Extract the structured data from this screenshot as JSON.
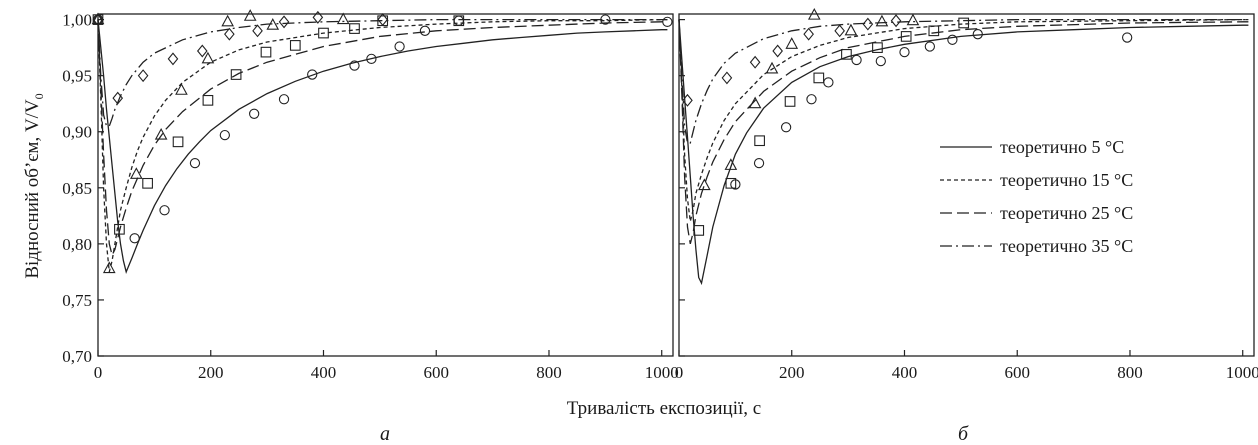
{
  "chart_data": {
    "type": "line",
    "ylabel": "Відносний об’єм, V/V",
    "ylabel_subscript": "0",
    "xlabel": "Тривалість експозиції, с",
    "legend_placement": "center-right of panel б",
    "grid": false,
    "legend": [
      {
        "label": "теоретично 5 °C",
        "dash": "solid"
      },
      {
        "label": "теоретично 15 °C",
        "dash": "short-dash"
      },
      {
        "label": "теоретично 25 °C",
        "dash": "long-dash"
      },
      {
        "label": "теоретично 35 °C",
        "dash": "dash-dot"
      }
    ],
    "panels": [
      {
        "letter": "а",
        "xlim": [
          0,
          1020
        ],
        "ylim": [
          0.7,
          1.005
        ],
        "xticks": [
          0,
          200,
          400,
          600,
          800,
          1000
        ],
        "xtick_labels": [
          "0",
          "200",
          "400",
          "600",
          "800",
          "1000"
        ],
        "yticks": [
          0.7,
          0.75,
          0.8,
          0.85,
          0.9,
          0.95,
          1.0
        ],
        "ytick_labels": [
          "0,70",
          "0,75",
          "0,80",
          "0,85",
          "0,90",
          "0,95",
          "1,00"
        ],
        "series": [
          {
            "dash": "solid",
            "x": [
              0,
              5,
              10,
              15,
              20,
              25,
              30,
              35,
              40,
              45,
              50,
              60,
              70,
              80,
              90,
              100,
              120,
              140,
              160,
              180,
              200,
              250,
              300,
              350,
              400,
              450,
              500,
              550,
              600,
              650,
              700,
              750,
              800,
              850,
              900,
              950,
              1000,
              1010
            ],
            "y": [
              1.0,
              0.975,
              0.95,
              0.92,
              0.895,
              0.87,
              0.845,
              0.82,
              0.8,
              0.785,
              0.775,
              0.787,
              0.8,
              0.812,
              0.823,
              0.834,
              0.852,
              0.867,
              0.88,
              0.891,
              0.901,
              0.92,
              0.934,
              0.945,
              0.954,
              0.961,
              0.967,
              0.972,
              0.976,
              0.979,
              0.982,
              0.984,
              0.986,
              0.988,
              0.989,
              0.99,
              0.991,
              0.991
            ]
          },
          {
            "dash": "short-dash",
            "x": [
              0,
              5,
              10,
              15,
              20,
              25,
              30,
              35,
              40,
              50,
              60,
              70,
              80,
              100,
              120,
              150,
              200,
              250,
              300,
              400,
              500,
              600,
              700,
              800,
              900,
              1000,
              1010
            ],
            "y": [
              1.0,
              0.93,
              0.85,
              0.8,
              0.775,
              0.785,
              0.8,
              0.815,
              0.83,
              0.85,
              0.868,
              0.883,
              0.895,
              0.914,
              0.928,
              0.944,
              0.962,
              0.973,
              0.98,
              0.988,
              0.993,
              0.996,
              0.998,
              0.999,
              0.999,
              1.0,
              1.0
            ]
          },
          {
            "dash": "long-dash",
            "x": [
              0,
              5,
              10,
              15,
              20,
              25,
              30,
              35,
              40,
              50,
              60,
              80,
              100,
              120,
              150,
              200,
              250,
              300,
              400,
              500,
              600,
              700,
              800,
              900,
              1000,
              1010
            ],
            "y": [
              1.0,
              0.94,
              0.88,
              0.83,
              0.8,
              0.79,
              0.795,
              0.805,
              0.815,
              0.832,
              0.847,
              0.87,
              0.888,
              0.902,
              0.918,
              0.938,
              0.952,
              0.962,
              0.976,
              0.985,
              0.99,
              0.993,
              0.995,
              0.997,
              0.998,
              0.998
            ]
          },
          {
            "dash": "dash-dot",
            "x": [
              0,
              5,
              10,
              15,
              20,
              25,
              30,
              40,
              50,
              60,
              80,
              100,
              150,
              200,
              250,
              300,
              400,
              500,
              600,
              800,
              1000,
              1010
            ],
            "y": [
              1.0,
              0.95,
              0.915,
              0.905,
              0.905,
              0.912,
              0.92,
              0.932,
              0.942,
              0.95,
              0.962,
              0.97,
              0.982,
              0.989,
              0.993,
              0.996,
              0.998,
              0.999,
              1.0,
              1.0,
              1.0,
              1.0
            ]
          }
        ],
        "markers": [
          {
            "shape": "circle",
            "x": [
              0,
              65,
              118,
              172,
              225,
              277,
              330,
              380,
              455,
              485,
              535,
              580,
              640,
              900,
              1010
            ],
            "y": [
              1.0,
              0.805,
              0.83,
              0.872,
              0.897,
              0.916,
              0.929,
              0.951,
              0.959,
              0.965,
              0.976,
              0.99,
              0.999,
              1.0,
              0.998
            ]
          },
          {
            "shape": "square",
            "x": [
              0,
              38,
              88,
              142,
              195,
              245,
              298,
              350,
              400,
              455,
              505,
              640
            ],
            "y": [
              1.0,
              0.813,
              0.854,
              0.891,
              0.928,
              0.951,
              0.971,
              0.977,
              0.988,
              0.992,
              0.999,
              0.999
            ]
          },
          {
            "shape": "triangle",
            "x": [
              0,
              20,
              68,
              112,
              148,
              195,
              230,
              270,
              310,
              435
            ],
            "y": [
              1.0,
              0.778,
              0.862,
              0.897,
              0.937,
              0.965,
              0.998,
              1.003,
              0.995,
              1.0
            ]
          },
          {
            "shape": "diamond",
            "x": [
              0,
              35,
              80,
              133,
              185,
              233,
              283,
              330,
              390,
              505
            ],
            "y": [
              1.0,
              0.93,
              0.95,
              0.965,
              0.972,
              0.987,
              0.99,
              0.998,
              1.002,
              1.0
            ]
          }
        ]
      },
      {
        "letter": "б",
        "xlim": [
          0,
          1020
        ],
        "ylim": [
          0.7,
          1.005
        ],
        "xticks": [
          0,
          200,
          400,
          600,
          800,
          1000
        ],
        "xtick_labels": [
          "0",
          "200",
          "400",
          "600",
          "800",
          "1000"
        ],
        "yticks": [
          0.7,
          0.75,
          0.8,
          0.85,
          0.9,
          0.95,
          1.0
        ],
        "ytick_labels": [],
        "series": [
          {
            "dash": "solid",
            "x": [
              0,
              5,
              10,
              15,
              20,
              25,
              30,
              35,
              40,
              50,
              60,
              80,
              100,
              120,
              150,
              200,
              250,
              300,
              350,
              400,
              500,
              600,
              700,
              800,
              900,
              1000,
              1010
            ],
            "y": [
              1.0,
              0.965,
              0.93,
              0.895,
              0.86,
              0.825,
              0.795,
              0.77,
              0.765,
              0.79,
              0.815,
              0.852,
              0.88,
              0.899,
              0.921,
              0.944,
              0.958,
              0.967,
              0.973,
              0.978,
              0.985,
              0.989,
              0.991,
              0.993,
              0.994,
              0.995,
              0.995
            ]
          },
          {
            "dash": "short-dash",
            "x": [
              0,
              5,
              10,
              15,
              20,
              25,
              30,
              40,
              50,
              60,
              80,
              100,
              150,
              200,
              250,
              300,
              400,
              500,
              600,
              800,
              1000,
              1010
            ],
            "y": [
              1.0,
              0.94,
              0.88,
              0.84,
              0.82,
              0.83,
              0.845,
              0.862,
              0.877,
              0.89,
              0.91,
              0.925,
              0.951,
              0.967,
              0.977,
              0.984,
              0.992,
              0.996,
              0.998,
              0.999,
              1.0,
              1.0
            ]
          },
          {
            "dash": "long-dash",
            "x": [
              0,
              5,
              10,
              15,
              20,
              25,
              30,
              40,
              50,
              60,
              80,
              100,
              150,
              200,
              250,
              300,
              400,
              500,
              600,
              800,
              1000,
              1010
            ],
            "y": [
              1.0,
              0.935,
              0.86,
              0.815,
              0.8,
              0.81,
              0.825,
              0.845,
              0.86,
              0.873,
              0.893,
              0.909,
              0.936,
              0.954,
              0.966,
              0.975,
              0.985,
              0.991,
              0.994,
              0.997,
              0.998,
              0.998
            ]
          },
          {
            "dash": "dash-dot",
            "x": [
              0,
              5,
              10,
              15,
              20,
              25,
              30,
              40,
              50,
              60,
              80,
              100,
              150,
              200,
              250,
              300,
              400,
              500,
              600,
              800,
              1000,
              1010
            ],
            "y": [
              1.0,
              0.95,
              0.905,
              0.89,
              0.89,
              0.9,
              0.91,
              0.925,
              0.937,
              0.947,
              0.961,
              0.97,
              0.983,
              0.99,
              0.994,
              0.996,
              0.998,
              0.999,
              1.0,
              1.0,
              1.0,
              1.0
            ]
          }
        ],
        "markers": [
          {
            "shape": "circle",
            "x": [
              100,
              142,
              190,
              235,
              265,
              315,
              358,
              400,
              445,
              485,
              530,
              795
            ],
            "y": [
              0.853,
              0.872,
              0.904,
              0.929,
              0.944,
              0.964,
              0.963,
              0.971,
              0.976,
              0.982,
              0.987,
              0.984
            ]
          },
          {
            "shape": "square",
            "x": [
              35,
              92,
              143,
              197,
              248,
              297,
              352,
              403,
              452,
              505
            ],
            "y": [
              0.812,
              0.854,
              0.892,
              0.927,
              0.948,
              0.969,
              0.975,
              0.985,
              0.99,
              0.997
            ]
          },
          {
            "shape": "triangle",
            "x": [
              45,
              92,
              135,
              165,
              200,
              240,
              305,
              360,
              415
            ],
            "y": [
              0.852,
              0.87,
              0.925,
              0.956,
              0.978,
              1.004,
              0.99,
              0.998,
              0.999
            ]
          },
          {
            "shape": "diamond",
            "x": [
              15,
              85,
              135,
              175,
              230,
              285,
              335,
              385
            ],
            "y": [
              0.928,
              0.948,
              0.962,
              0.972,
              0.987,
              0.99,
              0.996,
              0.999
            ]
          }
        ]
      }
    ]
  }
}
